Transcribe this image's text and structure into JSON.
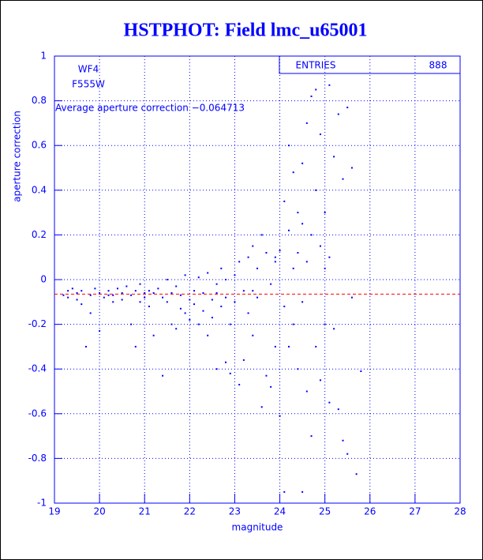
{
  "chart_data": {
    "type": "scatter",
    "title": "HSTPHOT: Field lmc_u65001",
    "xlabel": "magnitude",
    "ylabel": "aperture correction",
    "labels": [
      "WF4",
      "F555W"
    ],
    "annotation": "Average aperture correction −0.064713",
    "stats": {
      "label": "ENTRIES",
      "value": 888
    },
    "hline": -0.064713,
    "hline_color": "#ff0000",
    "color": "#0000ff",
    "grid": true,
    "xlim": [
      19,
      28
    ],
    "xticks": [
      19,
      20,
      21,
      22,
      23,
      24,
      25,
      26,
      27,
      28
    ],
    "ylim": [
      -1,
      1
    ],
    "yticks": [
      -1,
      -0.8,
      -0.6,
      -0.4,
      -0.2,
      0,
      0.2,
      0.4,
      0.6,
      0.8,
      1
    ],
    "x": [
      19.2,
      19.3,
      19.3,
      19.4,
      19.5,
      19.5,
      19.6,
      19.6,
      19.7,
      19.8,
      19.8,
      19.9,
      20.0,
      20.0,
      20.1,
      20.2,
      20.3,
      20.3,
      20.4,
      20.5,
      20.5,
      20.6,
      20.7,
      20.7,
      20.8,
      20.8,
      20.9,
      20.9,
      21.0,
      21.1,
      21.1,
      21.2,
      21.2,
      21.3,
      21.4,
      21.4,
      21.5,
      21.5,
      21.6,
      21.6,
      21.7,
      21.7,
      21.8,
      21.8,
      21.9,
      21.9,
      22.0,
      22.0,
      22.1,
      22.1,
      22.2,
      22.2,
      22.3,
      22.3,
      22.4,
      22.4,
      22.5,
      22.5,
      22.6,
      22.6,
      22.7,
      22.7,
      22.8,
      22.8,
      22.9,
      22.9,
      23.0,
      23.0,
      23.1,
      23.1,
      23.2,
      23.2,
      23.3,
      23.3,
      23.4,
      23.4,
      23.5,
      23.5,
      23.6,
      23.6,
      23.7,
      23.7,
      23.8,
      23.8,
      23.9,
      23.9,
      24.0,
      24.0,
      24.1,
      24.1,
      24.1,
      24.2,
      24.2,
      24.2,
      24.3,
      24.3,
      24.3,
      24.4,
      24.4,
      24.4,
      24.5,
      24.5,
      24.5,
      24.5,
      24.6,
      24.6,
      24.6,
      24.7,
      24.7,
      24.7,
      24.8,
      24.8,
      24.8,
      24.9,
      24.9,
      24.9,
      25.0,
      25.0,
      25.0,
      25.1,
      25.1,
      25.1,
      25.2,
      25.2,
      25.3,
      25.3,
      25.4,
      25.4,
      25.5,
      25.5,
      25.6,
      25.6,
      25.7,
      25.8,
      22.6,
      22.8,
      23.4,
      23.9,
      21.0,
      20.2
    ],
    "values": [
      -0.07,
      -0.05,
      -0.08,
      -0.04,
      -0.06,
      -0.09,
      -0.11,
      -0.05,
      -0.3,
      -0.07,
      -0.15,
      -0.04,
      -0.23,
      -0.06,
      -0.08,
      -0.05,
      -0.07,
      -0.1,
      -0.04,
      -0.06,
      -0.09,
      -0.03,
      -0.2,
      -0.07,
      -0.3,
      -0.05,
      -0.1,
      -0.02,
      -0.08,
      -0.05,
      -0.12,
      -0.06,
      -0.25,
      -0.04,
      -0.43,
      -0.08,
      -0.1,
      0.0,
      -0.2,
      -0.06,
      -0.22,
      -0.03,
      -0.13,
      -0.07,
      -0.15,
      0.02,
      -0.09,
      -0.18,
      -0.05,
      -0.11,
      -0.2,
      0.01,
      -0.14,
      -0.06,
      -0.25,
      0.03,
      -0.09,
      -0.17,
      -0.4,
      -0.02,
      -0.12,
      0.05,
      -0.37,
      -0.08,
      -0.42,
      -0.2,
      0.02,
      -0.1,
      -0.47,
      0.08,
      -0.36,
      -0.05,
      0.1,
      -0.15,
      0.15,
      -0.25,
      0.05,
      -0.08,
      -0.57,
      0.2,
      -0.43,
      0.12,
      -0.48,
      -0.02,
      0.08,
      -0.3,
      -0.61,
      0.13,
      0.35,
      -0.12,
      -0.95,
      0.6,
      0.22,
      -0.3,
      0.48,
      0.05,
      -0.2,
      0.3,
      -0.4,
      0.12,
      0.52,
      -0.1,
      -0.95,
      0.25,
      0.7,
      -0.5,
      0.08,
      0.82,
      -0.7,
      0.2,
      0.85,
      -0.3,
      0.4,
      0.15,
      -0.45,
      0.65,
      0.3,
      -0.2,
      0.05,
      0.87,
      -0.55,
      0.1,
      0.55,
      -0.22,
      0.74,
      -0.58,
      0.45,
      -0.72,
      0.77,
      -0.78,
      0.5,
      -0.08,
      -0.87,
      -0.41,
      -0.06,
      0.0,
      -0.05,
      0.1,
      -0.06,
      -0.07
    ]
  }
}
